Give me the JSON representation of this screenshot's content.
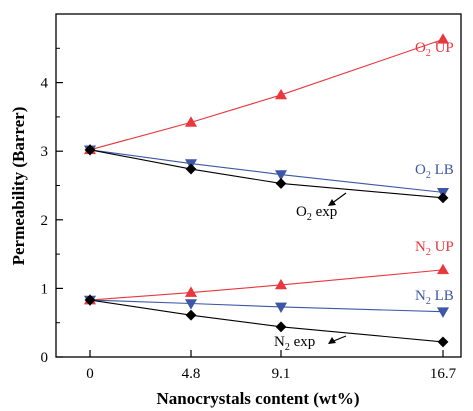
{
  "chart_data": {
    "type": "line",
    "xlabel": "Nanocrystals content (wt%)",
    "ylabel": "Permeability (Barrer)",
    "x": [
      0,
      4.8,
      9.1,
      16.7
    ],
    "x_tick_labels": [
      "0",
      "4.8",
      "9.1",
      "16.7"
    ],
    "ylim": [
      0,
      5
    ],
    "y_ticks": [
      0,
      1,
      2,
      3,
      4
    ],
    "y_tick_labels": [
      "0",
      "1",
      "2",
      "3",
      "4"
    ],
    "grid": false,
    "colors": {
      "red": "#e8373d",
      "blue": "#3d56a6",
      "black": "#000000"
    },
    "series": [
      {
        "key": "o2_up",
        "values": [
          3.02,
          3.42,
          3.82,
          4.63
        ],
        "color": "#e8373d",
        "marker": "triangle-up"
      },
      {
        "key": "o2_lb",
        "values": [
          3.02,
          2.82,
          2.66,
          2.4
        ],
        "color": "#3d56a6",
        "marker": "triangle-down"
      },
      {
        "key": "o2_exp",
        "values": [
          3.02,
          2.74,
          2.53,
          2.32
        ],
        "color": "#000000",
        "marker": "diamond"
      },
      {
        "key": "n2_up",
        "values": [
          0.83,
          0.94,
          1.05,
          1.27
        ],
        "color": "#e8373d",
        "marker": "triangle-up"
      },
      {
        "key": "n2_lb",
        "values": [
          0.83,
          0.78,
          0.73,
          0.66
        ],
        "color": "#3d56a6",
        "marker": "triangle-down"
      },
      {
        "key": "n2_exp",
        "values": [
          0.83,
          0.61,
          0.44,
          0.22
        ],
        "color": "#000000",
        "marker": "diamond"
      }
    ],
    "annotations": [
      {
        "key": "o2_up",
        "base": "O",
        "sub": "2",
        "rest": " UP",
        "color": "#e8373d",
        "arrow": false
      },
      {
        "key": "o2_lb",
        "base": "O",
        "sub": "2",
        "rest": " LB",
        "color": "#3d56a6",
        "arrow": false
      },
      {
        "key": "o2_exp",
        "base": "O",
        "sub": "2",
        "rest": " exp",
        "color": "#000000",
        "arrow": true
      },
      {
        "key": "n2_up",
        "base": "N",
        "sub": "2",
        "rest": " UP",
        "color": "#e8373d",
        "arrow": false
      },
      {
        "key": "n2_lb",
        "base": "N",
        "sub": "2",
        "rest": " LB",
        "color": "#3d56a6",
        "arrow": false
      },
      {
        "key": "n2_exp",
        "base": "N",
        "sub": "2",
        "rest": " exp",
        "color": "#000000",
        "arrow": true
      }
    ]
  }
}
